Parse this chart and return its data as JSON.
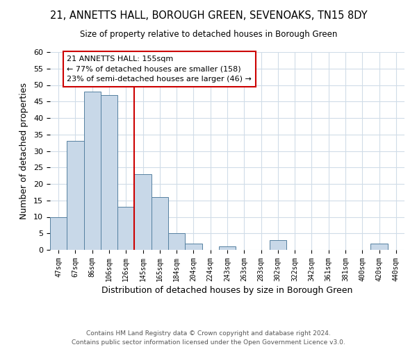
{
  "title": "21, ANNETTS HALL, BOROUGH GREEN, SEVENOAKS, TN15 8DY",
  "subtitle": "Size of property relative to detached houses in Borough Green",
  "xlabel": "Distribution of detached houses by size in Borough Green",
  "ylabel": "Number of detached properties",
  "bin_labels": [
    "47sqm",
    "67sqm",
    "86sqm",
    "106sqm",
    "126sqm",
    "145sqm",
    "165sqm",
    "184sqm",
    "204sqm",
    "224sqm",
    "243sqm",
    "263sqm",
    "283sqm",
    "302sqm",
    "322sqm",
    "342sqm",
    "361sqm",
    "381sqm",
    "400sqm",
    "420sqm",
    "440sqm"
  ],
  "bar_heights": [
    10,
    33,
    48,
    47,
    13,
    23,
    16,
    5,
    2,
    0,
    1,
    0,
    0,
    3,
    0,
    0,
    0,
    0,
    0,
    2,
    0
  ],
  "bar_color": "#c8d8e8",
  "bar_edge_color": "#5580a0",
  "annotation_title": "21 ANNETTS HALL: 155sqm",
  "annotation_line1": "← 77% of detached houses are smaller (158)",
  "annotation_line2": "23% of semi-detached houses are larger (46) →",
  "annotation_box_color": "#ffffff",
  "annotation_box_edge": "#cc0000",
  "vline_color": "#cc0000",
  "vline_x": 4.5,
  "ylim": [
    0,
    60
  ],
  "yticks": [
    0,
    5,
    10,
    15,
    20,
    25,
    30,
    35,
    40,
    45,
    50,
    55,
    60
  ],
  "footer1": "Contains HM Land Registry data © Crown copyright and database right 2024.",
  "footer2": "Contains public sector information licensed under the Open Government Licence v3.0.",
  "background_color": "#ffffff",
  "grid_color": "#d0dce8"
}
